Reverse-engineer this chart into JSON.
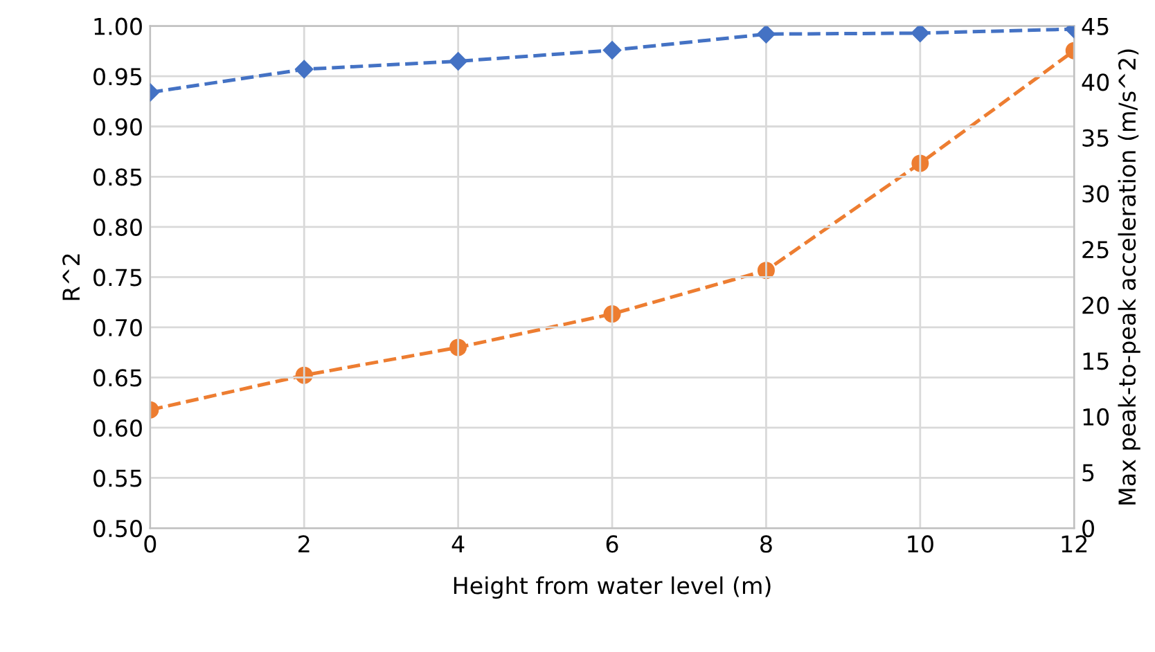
{
  "chart_data": {
    "type": "line",
    "xlabel": "Height from water level (m)",
    "ylabel": "R^2",
    "y2label": "Max peak-to-peak acceleration (m/s^2)",
    "x": [
      0,
      2,
      4,
      6,
      8,
      10,
      12
    ],
    "series": [
      {
        "color": "#4472c4",
        "marker": "diamond",
        "values": [
          0.934,
          0.957,
          0.965,
          0.976,
          0.992,
          0.993,
          0.997
        ]
      },
      {
        "color": "#ed7d31",
        "marker": "circle",
        "axis": "y2",
        "values": [
          10.6,
          13.7,
          16.2,
          19.2,
          23.1,
          32.7,
          42.8
        ]
      }
    ],
    "line_style": "dashed",
    "xlim": [
      0,
      12
    ],
    "xticks": [
      0,
      2,
      4,
      6,
      8,
      10,
      12
    ],
    "ylim": [
      0.5,
      1.0
    ],
    "yticks": [
      {
        "value": 0.5,
        "label": "0.50"
      },
      {
        "value": 0.55,
        "label": "0.55"
      },
      {
        "value": 0.6,
        "label": "0.60"
      },
      {
        "value": 0.65,
        "label": "0.65"
      },
      {
        "value": 0.7,
        "label": "0.70"
      },
      {
        "value": 0.75,
        "label": "0.75"
      },
      {
        "value": 0.8,
        "label": "0.80"
      },
      {
        "value": 0.85,
        "label": "0.85"
      },
      {
        "value": 0.9,
        "label": "0.90"
      },
      {
        "value": 0.95,
        "label": "0.95"
      },
      {
        "value": 1.0,
        "label": "1.00"
      }
    ],
    "y2lim": [
      0,
      45
    ],
    "y2ticks": [
      0,
      5,
      10,
      15,
      20,
      25,
      30,
      35,
      40,
      45
    ],
    "grid": true
  }
}
